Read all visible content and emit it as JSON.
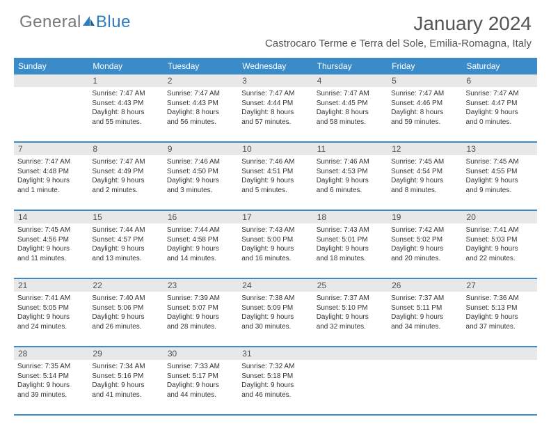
{
  "logo": {
    "text1": "General",
    "text2": "Blue"
  },
  "title": "January 2024",
  "location": "Castrocaro Terme e Terra del Sole, Emilia-Romagna, Italy",
  "colors": {
    "header_bg": "#3b8bc9",
    "header_text": "#ffffff",
    "daynum_bg": "#e8e8e8",
    "divider": "#3b8bc9",
    "body_text": "#333333",
    "title_text": "#555555",
    "logo_gray": "#777777",
    "logo_blue": "#2d7bc0"
  },
  "day_names": [
    "Sunday",
    "Monday",
    "Tuesday",
    "Wednesday",
    "Thursday",
    "Friday",
    "Saturday"
  ],
  "weeks": [
    {
      "nums": [
        "",
        "1",
        "2",
        "3",
        "4",
        "5",
        "6"
      ],
      "cells": [
        {},
        {
          "sunrise": "Sunrise: 7:47 AM",
          "sunset": "Sunset: 4:43 PM",
          "d1": "Daylight: 8 hours",
          "d2": "and 55 minutes."
        },
        {
          "sunrise": "Sunrise: 7:47 AM",
          "sunset": "Sunset: 4:43 PM",
          "d1": "Daylight: 8 hours",
          "d2": "and 56 minutes."
        },
        {
          "sunrise": "Sunrise: 7:47 AM",
          "sunset": "Sunset: 4:44 PM",
          "d1": "Daylight: 8 hours",
          "d2": "and 57 minutes."
        },
        {
          "sunrise": "Sunrise: 7:47 AM",
          "sunset": "Sunset: 4:45 PM",
          "d1": "Daylight: 8 hours",
          "d2": "and 58 minutes."
        },
        {
          "sunrise": "Sunrise: 7:47 AM",
          "sunset": "Sunset: 4:46 PM",
          "d1": "Daylight: 8 hours",
          "d2": "and 59 minutes."
        },
        {
          "sunrise": "Sunrise: 7:47 AM",
          "sunset": "Sunset: 4:47 PM",
          "d1": "Daylight: 9 hours",
          "d2": "and 0 minutes."
        }
      ]
    },
    {
      "nums": [
        "7",
        "8",
        "9",
        "10",
        "11",
        "12",
        "13"
      ],
      "cells": [
        {
          "sunrise": "Sunrise: 7:47 AM",
          "sunset": "Sunset: 4:48 PM",
          "d1": "Daylight: 9 hours",
          "d2": "and 1 minute."
        },
        {
          "sunrise": "Sunrise: 7:47 AM",
          "sunset": "Sunset: 4:49 PM",
          "d1": "Daylight: 9 hours",
          "d2": "and 2 minutes."
        },
        {
          "sunrise": "Sunrise: 7:46 AM",
          "sunset": "Sunset: 4:50 PM",
          "d1": "Daylight: 9 hours",
          "d2": "and 3 minutes."
        },
        {
          "sunrise": "Sunrise: 7:46 AM",
          "sunset": "Sunset: 4:51 PM",
          "d1": "Daylight: 9 hours",
          "d2": "and 5 minutes."
        },
        {
          "sunrise": "Sunrise: 7:46 AM",
          "sunset": "Sunset: 4:53 PM",
          "d1": "Daylight: 9 hours",
          "d2": "and 6 minutes."
        },
        {
          "sunrise": "Sunrise: 7:45 AM",
          "sunset": "Sunset: 4:54 PM",
          "d1": "Daylight: 9 hours",
          "d2": "and 8 minutes."
        },
        {
          "sunrise": "Sunrise: 7:45 AM",
          "sunset": "Sunset: 4:55 PM",
          "d1": "Daylight: 9 hours",
          "d2": "and 9 minutes."
        }
      ]
    },
    {
      "nums": [
        "14",
        "15",
        "16",
        "17",
        "18",
        "19",
        "20"
      ],
      "cells": [
        {
          "sunrise": "Sunrise: 7:45 AM",
          "sunset": "Sunset: 4:56 PM",
          "d1": "Daylight: 9 hours",
          "d2": "and 11 minutes."
        },
        {
          "sunrise": "Sunrise: 7:44 AM",
          "sunset": "Sunset: 4:57 PM",
          "d1": "Daylight: 9 hours",
          "d2": "and 13 minutes."
        },
        {
          "sunrise": "Sunrise: 7:44 AM",
          "sunset": "Sunset: 4:58 PM",
          "d1": "Daylight: 9 hours",
          "d2": "and 14 minutes."
        },
        {
          "sunrise": "Sunrise: 7:43 AM",
          "sunset": "Sunset: 5:00 PM",
          "d1": "Daylight: 9 hours",
          "d2": "and 16 minutes."
        },
        {
          "sunrise": "Sunrise: 7:43 AM",
          "sunset": "Sunset: 5:01 PM",
          "d1": "Daylight: 9 hours",
          "d2": "and 18 minutes."
        },
        {
          "sunrise": "Sunrise: 7:42 AM",
          "sunset": "Sunset: 5:02 PM",
          "d1": "Daylight: 9 hours",
          "d2": "and 20 minutes."
        },
        {
          "sunrise": "Sunrise: 7:41 AM",
          "sunset": "Sunset: 5:03 PM",
          "d1": "Daylight: 9 hours",
          "d2": "and 22 minutes."
        }
      ]
    },
    {
      "nums": [
        "21",
        "22",
        "23",
        "24",
        "25",
        "26",
        "27"
      ],
      "cells": [
        {
          "sunrise": "Sunrise: 7:41 AM",
          "sunset": "Sunset: 5:05 PM",
          "d1": "Daylight: 9 hours",
          "d2": "and 24 minutes."
        },
        {
          "sunrise": "Sunrise: 7:40 AM",
          "sunset": "Sunset: 5:06 PM",
          "d1": "Daylight: 9 hours",
          "d2": "and 26 minutes."
        },
        {
          "sunrise": "Sunrise: 7:39 AM",
          "sunset": "Sunset: 5:07 PM",
          "d1": "Daylight: 9 hours",
          "d2": "and 28 minutes."
        },
        {
          "sunrise": "Sunrise: 7:38 AM",
          "sunset": "Sunset: 5:09 PM",
          "d1": "Daylight: 9 hours",
          "d2": "and 30 minutes."
        },
        {
          "sunrise": "Sunrise: 7:37 AM",
          "sunset": "Sunset: 5:10 PM",
          "d1": "Daylight: 9 hours",
          "d2": "and 32 minutes."
        },
        {
          "sunrise": "Sunrise: 7:37 AM",
          "sunset": "Sunset: 5:11 PM",
          "d1": "Daylight: 9 hours",
          "d2": "and 34 minutes."
        },
        {
          "sunrise": "Sunrise: 7:36 AM",
          "sunset": "Sunset: 5:13 PM",
          "d1": "Daylight: 9 hours",
          "d2": "and 37 minutes."
        }
      ]
    },
    {
      "nums": [
        "28",
        "29",
        "30",
        "31",
        "",
        "",
        ""
      ],
      "cells": [
        {
          "sunrise": "Sunrise: 7:35 AM",
          "sunset": "Sunset: 5:14 PM",
          "d1": "Daylight: 9 hours",
          "d2": "and 39 minutes."
        },
        {
          "sunrise": "Sunrise: 7:34 AM",
          "sunset": "Sunset: 5:16 PM",
          "d1": "Daylight: 9 hours",
          "d2": "and 41 minutes."
        },
        {
          "sunrise": "Sunrise: 7:33 AM",
          "sunset": "Sunset: 5:17 PM",
          "d1": "Daylight: 9 hours",
          "d2": "and 44 minutes."
        },
        {
          "sunrise": "Sunrise: 7:32 AM",
          "sunset": "Sunset: 5:18 PM",
          "d1": "Daylight: 9 hours",
          "d2": "and 46 minutes."
        },
        {},
        {},
        {}
      ]
    }
  ]
}
